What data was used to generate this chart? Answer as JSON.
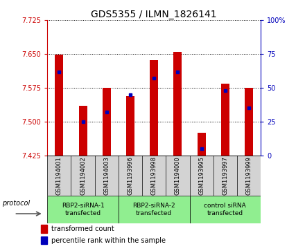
{
  "title": "GDS5355 / ILMN_1826141",
  "samples": [
    "GSM1194001",
    "GSM1194002",
    "GSM1194003",
    "GSM1193996",
    "GSM1193998",
    "GSM1194000",
    "GSM1193995",
    "GSM1193997",
    "GSM1193999"
  ],
  "transformed_counts": [
    7.648,
    7.535,
    7.575,
    7.556,
    7.637,
    7.655,
    7.475,
    7.584,
    7.575
  ],
  "percentile_ranks": [
    62,
    25,
    32,
    45,
    57,
    62,
    5,
    48,
    35
  ],
  "ylim": [
    7.425,
    7.725
  ],
  "yticks": [
    7.425,
    7.5,
    7.575,
    7.65,
    7.725
  ],
  "right_yticks": [
    0,
    25,
    50,
    75,
    100
  ],
  "right_ylim": [
    0,
    100
  ],
  "groups": [
    {
      "label": "RBP2-siRNA-1\ntransfected",
      "color": "#90EE90",
      "indices": [
        0,
        1,
        2
      ]
    },
    {
      "label": "RBP2-siRNA-2\ntransfected",
      "color": "#90EE90",
      "indices": [
        3,
        4,
        5
      ]
    },
    {
      "label": "control siRNA\ntransfected",
      "color": "#90EE90",
      "indices": [
        6,
        7,
        8
      ]
    }
  ],
  "bar_color": "#CC0000",
  "dot_color": "#0000BB",
  "base_value": 7.425,
  "legend_red": "transformed count",
  "legend_blue": "percentile rank within the sample",
  "xlabel_protocol": "protocol",
  "title_fontsize": 10,
  "tick_fontsize": 7,
  "bar_width": 0.35,
  "sample_box_color": "#D3D3D3",
  "spine_color_left": "#CC0000",
  "spine_color_right": "#0000BB"
}
